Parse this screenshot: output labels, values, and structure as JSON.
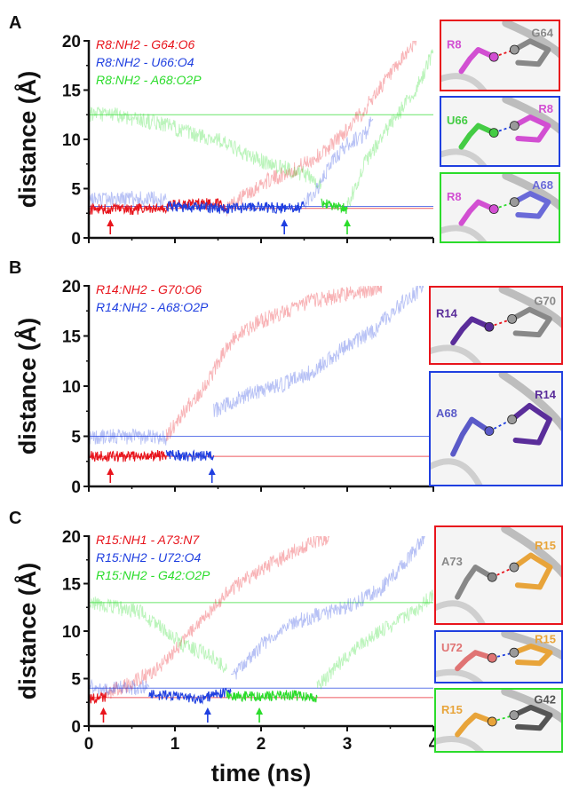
{
  "colors": {
    "red": "#e8141c",
    "blue": "#1f3fe0",
    "green": "#2bdc2b"
  },
  "xaxis": {
    "label": "time (ns)",
    "ticks": [
      "0",
      "1",
      "2",
      "3",
      "4"
    ]
  },
  "chart_data": [
    {
      "type": "line",
      "panel_label": "A",
      "ylabel": "distance (Å)",
      "xlim": [
        0,
        4
      ],
      "ylim": [
        0,
        20
      ],
      "yticks": [
        "0",
        "5",
        "10",
        "15",
        "20"
      ],
      "grid": false,
      "legend_position": "top-left",
      "series": [
        {
          "name": "R8:NH2 - G64:O6",
          "color": "red",
          "segments": [
            {
              "style": "solid",
              "x": [
                0,
                0.5,
                0.9,
                0.95,
                1.5,
                1.6
              ],
              "y": [
                2.9,
                2.9,
                2.9,
                3.4,
                3.5,
                3.0
              ]
            },
            {
              "style": "faded",
              "x": [
                1.6,
                2.0,
                2.4,
                2.7,
                3.0,
                3.2,
                3.4,
                3.6,
                3.7,
                3.8
              ],
              "y": [
                3.0,
                5.5,
                7.0,
                8.5,
                11,
                13,
                15.5,
                17.5,
                19,
                20
              ]
            }
          ],
          "plateau": 3.0,
          "arrow_x": 0.25
        },
        {
          "name": "R8:NH2 - U66:O4",
          "color": "blue",
          "segments": [
            {
              "style": "faded",
              "x": [
                0,
                0.5,
                0.9
              ],
              "y": [
                3.9,
                4.0,
                3.9
              ]
            },
            {
              "style": "solid",
              "x": [
                0.9,
                1.5,
                2.0,
                2.4,
                2.5
              ],
              "y": [
                3.2,
                3.0,
                3.1,
                3.0,
                3.2
              ]
            },
            {
              "style": "faded",
              "x": [
                2.5,
                2.7,
                2.8,
                3.0,
                3.2,
                3.3
              ],
              "y": [
                3.4,
                5.5,
                7.5,
                9.5,
                10.5,
                12
              ]
            }
          ],
          "plateau": 3.2,
          "arrow_x": 2.27
        },
        {
          "name": "R8:NH2 - A68:O2P",
          "color": "green",
          "segments": [
            {
              "style": "faded",
              "x": [
                0,
                0.3,
                0.6,
                0.9,
                1.2,
                1.5,
                1.8,
                2.1,
                2.5,
                2.7
              ],
              "y": [
                12.5,
                12.5,
                12,
                11.5,
                10.5,
                10,
                8.5,
                7.5,
                6.5,
                5.5
              ]
            },
            {
              "style": "solid",
              "x": [
                2.7,
                2.85,
                3.0
              ],
              "y": [
                3.5,
                3.2,
                2.9
              ]
            },
            {
              "style": "faded",
              "x": [
                3.0,
                3.2,
                3.5,
                3.8,
                4.0
              ],
              "y": [
                3.2,
                7.5,
                11.5,
                15,
                19
              ]
            }
          ],
          "plateau": 12.5,
          "arrow_x": 3.0
        }
      ]
    },
    {
      "type": "line",
      "panel_label": "B",
      "ylabel": "distance (Å)",
      "xlim": [
        0,
        4
      ],
      "ylim": [
        0,
        20
      ],
      "yticks": [
        "0",
        "5",
        "10",
        "15",
        "20"
      ],
      "grid": false,
      "legend_position": "top-left",
      "series": [
        {
          "name": "R14:NH2 - G70:O6",
          "color": "red",
          "segments": [
            {
              "style": "solid",
              "x": [
                0,
                0.5,
                0.9
              ],
              "y": [
                3.0,
                3.0,
                3.1
              ]
            },
            {
              "style": "faded",
              "x": [
                0.9,
                1.1,
                1.3,
                1.45,
                1.6,
                1.8,
                2.0,
                2.3,
                2.6,
                2.9,
                3.2,
                3.4
              ],
              "y": [
                5,
                7.5,
                9.5,
                11.5,
                14,
                15.5,
                16.5,
                17.5,
                18.5,
                19,
                19.5,
                20
              ]
            }
          ],
          "plateau": 3.0,
          "arrow_x": 0.25
        },
        {
          "name": "R14:NH2 - A68:O2P",
          "color": "blue",
          "segments": [
            {
              "style": "faded",
              "x": [
                0,
                0.5,
                0.9
              ],
              "y": [
                4.9,
                5.0,
                4.8
              ]
            },
            {
              "style": "solid",
              "x": [
                0.9,
                1.2,
                1.45
              ],
              "y": [
                3.2,
                3.0,
                3.1
              ]
            },
            {
              "style": "faded",
              "x": [
                1.45,
                1.8,
                2.2,
                2.6,
                3.0,
                3.3,
                3.6,
                3.9
              ],
              "y": [
                7.5,
                9,
                10,
                11.5,
                14,
                15.5,
                18,
                20
              ]
            }
          ],
          "plateau": 5.0,
          "arrow_x": 1.43
        }
      ]
    },
    {
      "type": "line",
      "panel_label": "C",
      "ylabel": "distance (Å)",
      "xlim": [
        0,
        4
      ],
      "ylim": [
        0,
        20
      ],
      "yticks": [
        "0",
        "5",
        "10",
        "15",
        "20"
      ],
      "grid": false,
      "legend_position": "top-left",
      "series": [
        {
          "name": "R15:NH1 - A73:N7",
          "color": "red",
          "segments": [
            {
              "style": "solid",
              "x": [
                0,
                0.2
              ],
              "y": [
                2.9,
                3.0
              ]
            },
            {
              "style": "faded",
              "x": [
                0.2,
                0.5,
                0.8,
                1.0,
                1.3,
                1.6,
                1.9,
                2.2,
                2.5,
                2.8
              ],
              "y": [
                3.5,
                4.5,
                6,
                8,
                11,
                14,
                16,
                17.5,
                19,
                20
              ]
            }
          ],
          "plateau": 3.0,
          "arrow_x": 0.17
        },
        {
          "name": "R15:NH2 - U72:O4",
          "color": "blue",
          "segments": [
            {
              "style": "faded",
              "x": [
                0,
                0.3,
                0.7
              ],
              "y": [
                4.2,
                4.0,
                4.1
              ]
            },
            {
              "style": "solid",
              "x": [
                0.7,
                1.0,
                1.3,
                1.45,
                1.65
              ],
              "y": [
                3.3,
                3.2,
                2.8,
                3.3,
                3.6
              ]
            },
            {
              "style": "faded",
              "x": [
                1.65,
                2.0,
                2.4,
                2.8,
                3.1,
                3.4,
                3.7,
                3.9
              ],
              "y": [
                5,
                8.5,
                11,
                12,
                13,
                14.5,
                17.5,
                20
              ]
            }
          ],
          "plateau": 4.0,
          "arrow_x": 1.38
        },
        {
          "name": "R15:NH2 - G42:O2P",
          "color": "green",
          "segments": [
            {
              "style": "faded",
              "x": [
                0,
                0.3,
                0.6,
                0.9,
                1.1,
                1.4,
                1.6
              ],
              "y": [
                13,
                12.5,
                12,
                10,
                8.5,
                7.5,
                6
              ]
            },
            {
              "style": "solid",
              "x": [
                1.6,
                2.0,
                2.3,
                2.65
              ],
              "y": [
                3.2,
                3.1,
                3.3,
                3.0
              ]
            },
            {
              "style": "faded",
              "x": [
                2.65,
                3.0,
                3.3,
                3.6,
                3.9,
                4.0
              ],
              "y": [
                4,
                7.5,
                9.5,
                11,
                13,
                14
              ]
            }
          ],
          "plateau": 13.0,
          "arrow_x": 1.98
        }
      ]
    }
  ],
  "insets": [
    [
      {
        "frame": "red",
        "labels": [
          {
            "text": "R8",
            "color": "#d24fd2"
          },
          {
            "text": "G64",
            "color": "#888888"
          }
        ]
      },
      {
        "frame": "blue",
        "labels": [
          {
            "text": "U66",
            "color": "#44cc44"
          },
          {
            "text": "R8",
            "color": "#d24fd2"
          }
        ]
      },
      {
        "frame": "green",
        "labels": [
          {
            "text": "R8",
            "color": "#d24fd2"
          },
          {
            "text": "A68",
            "color": "#6a6ad8"
          }
        ]
      }
    ],
    [
      {
        "frame": "red",
        "labels": [
          {
            "text": "R14",
            "color": "#5a2d9a"
          },
          {
            "text": "G70",
            "color": "#888888"
          }
        ]
      },
      {
        "frame": "blue",
        "labels": [
          {
            "text": "A68",
            "color": "#5a5ac8"
          },
          {
            "text": "R14",
            "color": "#5a2d9a"
          }
        ]
      }
    ],
    [
      {
        "frame": "red",
        "labels": [
          {
            "text": "A73",
            "color": "#888888"
          },
          {
            "text": "R15",
            "color": "#e8a43a"
          }
        ]
      },
      {
        "frame": "blue",
        "labels": [
          {
            "text": "U72",
            "color": "#e07474"
          },
          {
            "text": "R15",
            "color": "#e8a43a"
          }
        ]
      },
      {
        "frame": "green",
        "labels": [
          {
            "text": "R15",
            "color": "#e8a43a"
          },
          {
            "text": "G42",
            "color": "#555555"
          }
        ]
      }
    ]
  ]
}
